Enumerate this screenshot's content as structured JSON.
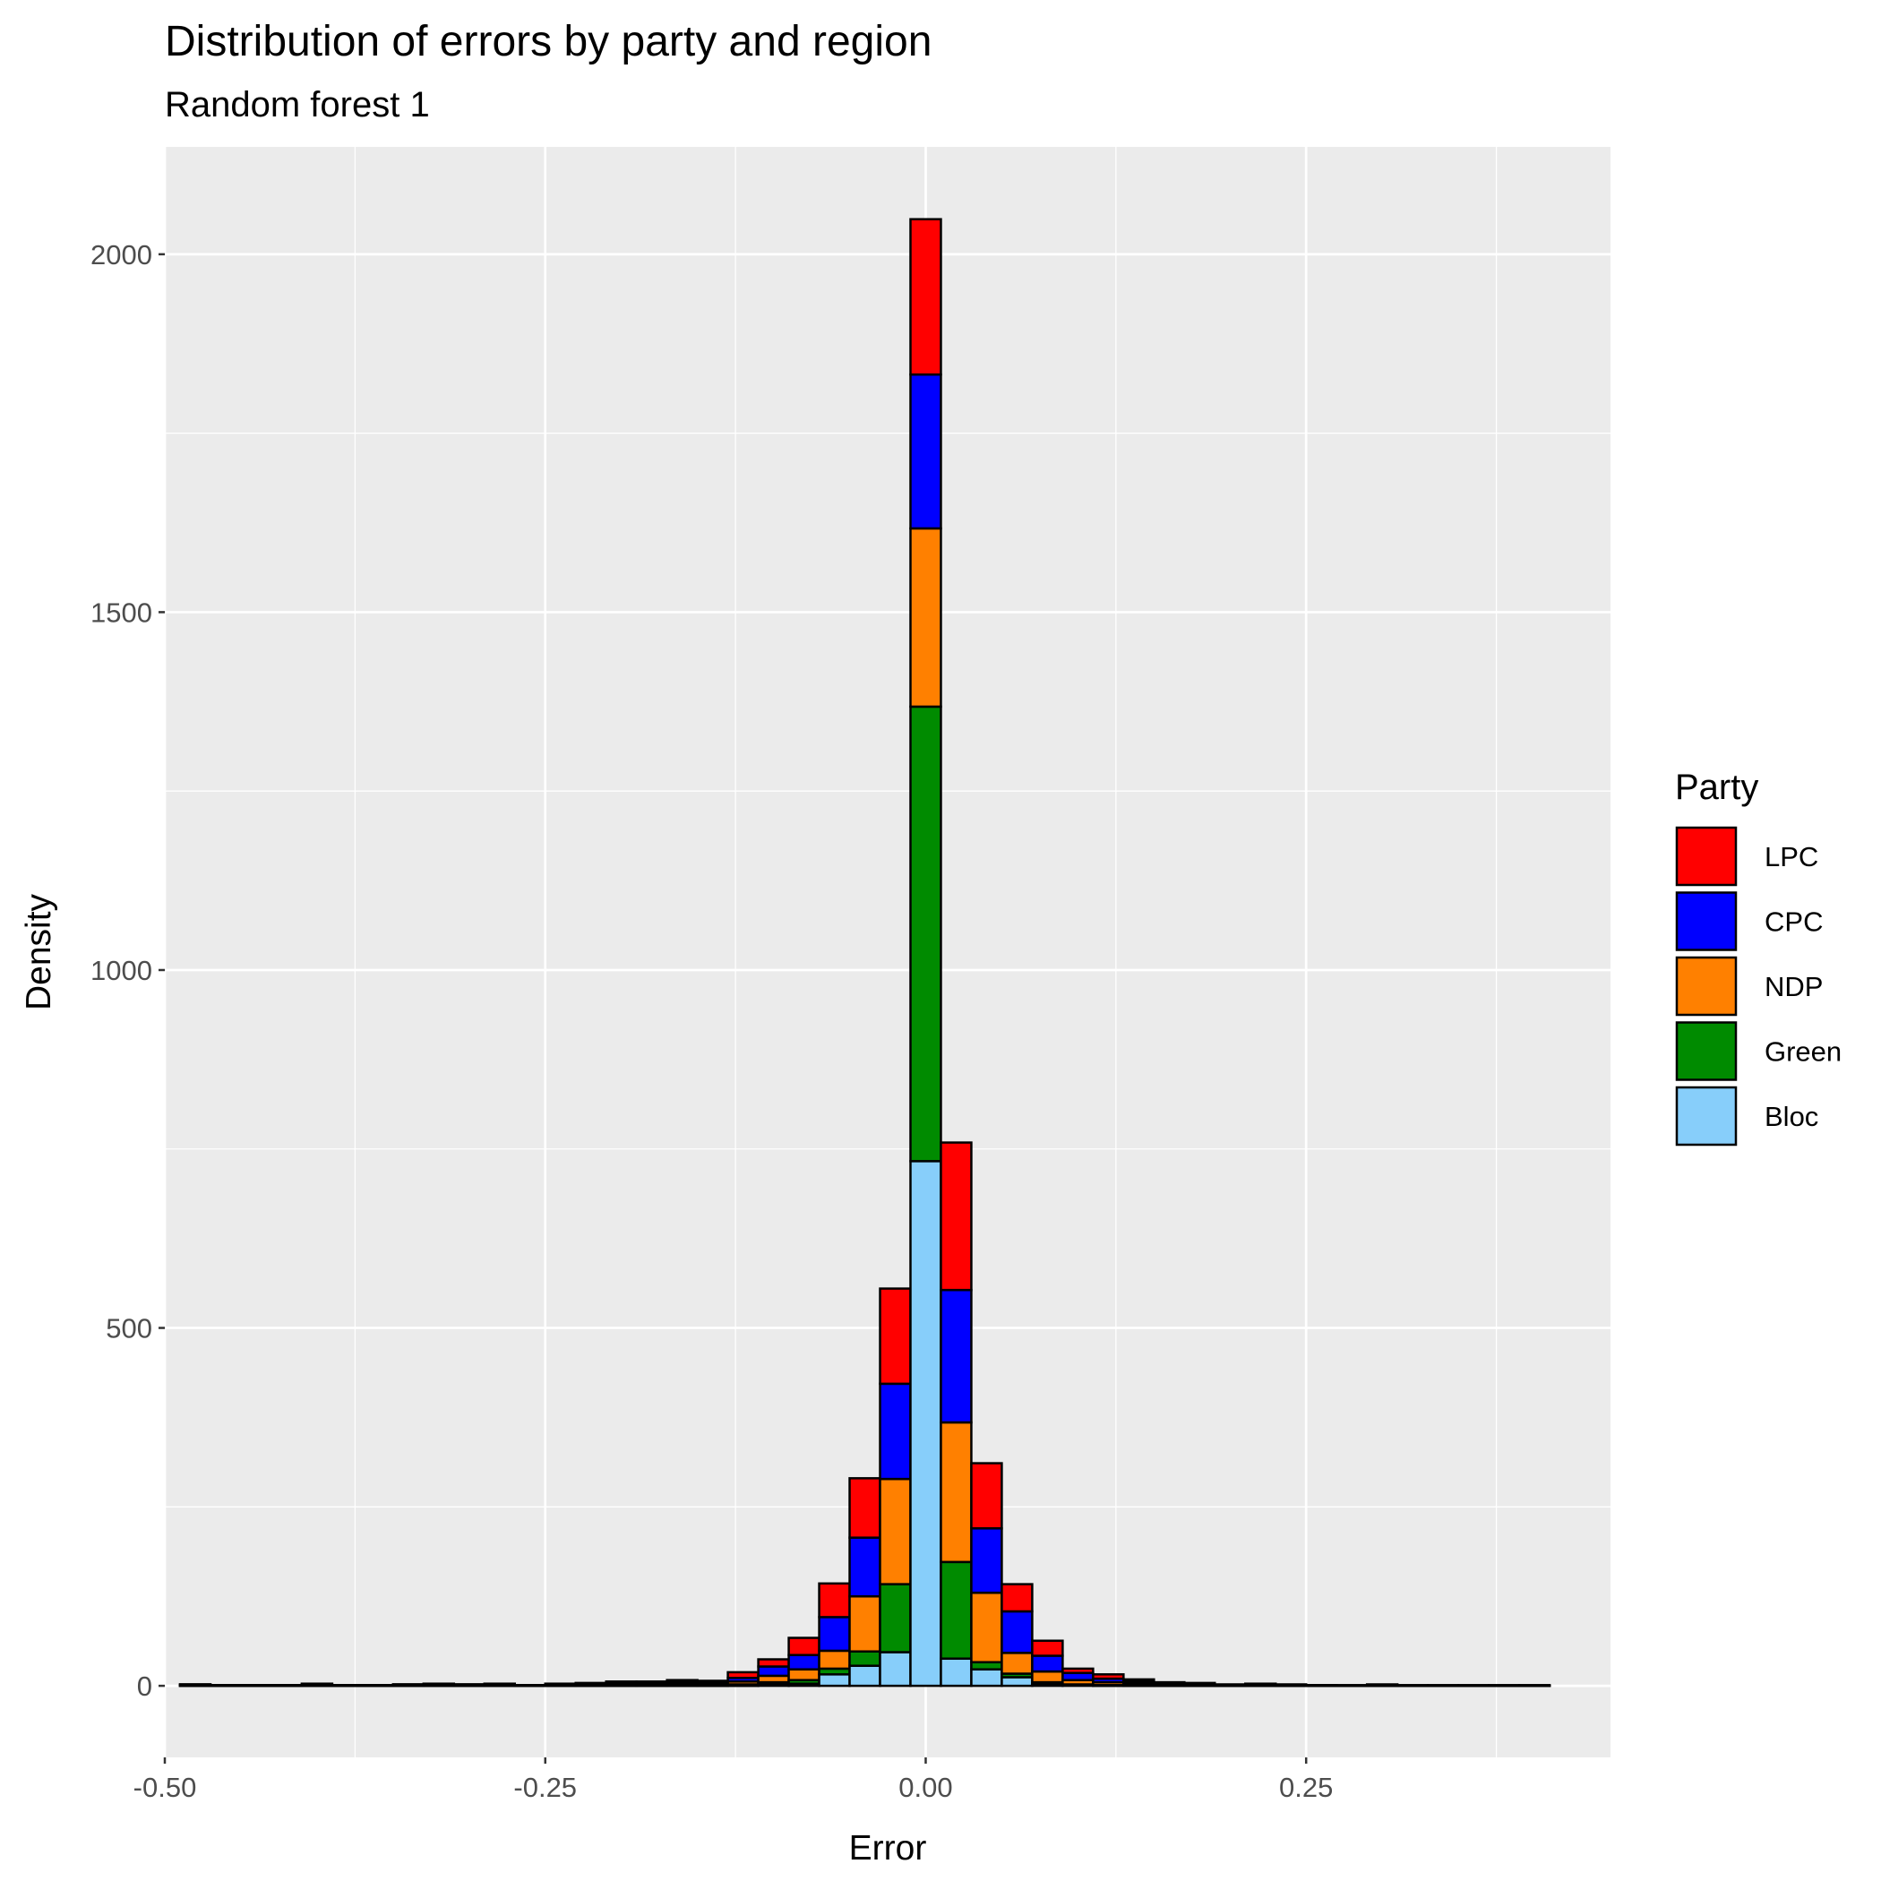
{
  "chart_data": {
    "type": "bar",
    "stacked": true,
    "title": "Distribution of errors by party and region",
    "subtitle": "Random forest 1",
    "xlabel": "Error",
    "ylabel": "Density",
    "xlim": [
      -0.5,
      0.45
    ],
    "ylim": [
      -100,
      2150
    ],
    "x_ticks": [
      -0.5,
      -0.25,
      0.0,
      0.25
    ],
    "x_tick_labels": [
      "-0.50",
      "-0.25",
      "0.00",
      "0.25"
    ],
    "y_ticks": [
      0,
      500,
      1000,
      1500,
      2000
    ],
    "y_tick_labels": [
      "0",
      "500",
      "1000",
      "1500",
      "2000"
    ],
    "grid": true,
    "legend": {
      "title": "Party",
      "position": "right"
    },
    "bin_width": 0.02,
    "bin_centers": [
      -0.48,
      -0.46,
      -0.44,
      -0.42,
      -0.4,
      -0.38,
      -0.36,
      -0.34,
      -0.32,
      -0.3,
      -0.28,
      -0.26,
      -0.24,
      -0.22,
      -0.2,
      -0.18,
      -0.16,
      -0.14,
      -0.12,
      -0.1,
      -0.08,
      -0.06,
      -0.04,
      -0.02,
      0.0,
      0.02,
      0.04,
      0.06,
      0.08,
      0.1,
      0.12,
      0.14,
      0.16,
      0.18,
      0.2,
      0.22,
      0.24,
      0.26,
      0.28,
      0.3,
      0.32,
      0.34,
      0.36,
      0.38,
      0.4
    ],
    "series": [
      {
        "name": "Bloc",
        "color": "#87CEFA",
        "values": [
          0,
          0,
          0,
          0,
          0,
          0,
          0,
          0,
          0,
          0,
          0,
          0,
          0,
          0,
          0,
          0,
          0,
          0,
          0,
          2,
          3,
          16,
          28,
          47,
          733,
          38,
          23,
          12,
          3,
          1,
          0,
          0,
          0,
          0,
          0,
          0,
          0,
          0,
          0,
          0,
          0,
          0,
          0,
          0,
          0
        ]
      },
      {
        "name": "Green",
        "color": "#008B00",
        "values": [
          0,
          0,
          0,
          0,
          0,
          0,
          0,
          0,
          0,
          0,
          0,
          0,
          0,
          0,
          0,
          0,
          0,
          0,
          2,
          3,
          5,
          8,
          20,
          95,
          635,
          135,
          10,
          5,
          2,
          1,
          1,
          0,
          0,
          0,
          0,
          0,
          0,
          0,
          0,
          0,
          0,
          0,
          0,
          0,
          0
        ]
      },
      {
        "name": "NDP",
        "color": "#FF8000",
        "values": [
          1,
          0,
          0,
          0,
          1,
          0,
          0,
          1,
          1,
          1,
          1,
          0,
          1,
          1,
          2,
          2,
          2,
          2,
          4,
          9,
          15,
          25,
          77,
          147,
          249,
          195,
          97,
          29,
          15,
          6,
          4,
          3,
          1,
          1,
          0,
          1,
          0,
          0,
          0,
          0,
          0,
          0,
          0,
          0,
          0
        ]
      },
      {
        "name": "CPC",
        "color": "#0000FF",
        "values": [
          1,
          1,
          1,
          1,
          1,
          1,
          1,
          1,
          1,
          1,
          1,
          1,
          1,
          2,
          2,
          2,
          3,
          2,
          5,
          13,
          20,
          47,
          82,
          133,
          215,
          185,
          90,
          58,
          22,
          10,
          5,
          3,
          2,
          1,
          1,
          1,
          1,
          1,
          0,
          1,
          0,
          0,
          0,
          0,
          0
        ]
      },
      {
        "name": "LPC",
        "color": "#FF0000",
        "values": [
          0,
          0,
          0,
          0,
          1,
          0,
          0,
          0,
          1,
          0,
          1,
          0,
          1,
          1,
          2,
          2,
          3,
          3,
          8,
          10,
          24,
          47,
          83,
          133,
          217,
          206,
          91,
          38,
          21,
          6,
          6,
          3,
          2,
          2,
          1,
          1,
          1,
          0,
          1,
          1,
          1,
          1,
          1,
          1,
          1
        ]
      }
    ]
  }
}
